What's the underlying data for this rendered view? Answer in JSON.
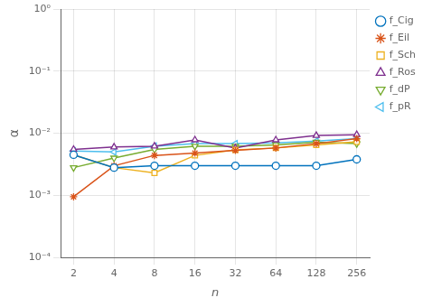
{
  "chart_data": {
    "type": "line",
    "x": [
      2,
      4,
      8,
      16,
      32,
      64,
      128,
      256
    ],
    "series": [
      {
        "name": "f_Cig",
        "color": "#0072BD",
        "marker": "circle",
        "values": [
          0.0045,
          0.0028,
          0.003,
          0.003,
          0.003,
          0.003,
          0.003,
          0.0038
        ]
      },
      {
        "name": "f_Eil",
        "color": "#D95319",
        "marker": "star",
        "values": [
          0.00095,
          0.003,
          0.0044,
          0.0048,
          0.0053,
          0.0058,
          0.0068,
          0.0082
        ]
      },
      {
        "name": "f_Sch",
        "color": "#EDB120",
        "marker": "square",
        "values": [
          0.0045,
          0.0028,
          0.0023,
          0.0044,
          0.0054,
          0.0058,
          0.0065,
          0.0073
        ]
      },
      {
        "name": "f_Ros",
        "color": "#7E2F8E",
        "marker": "triangle-up",
        "values": [
          0.0055,
          0.006,
          0.0062,
          0.0078,
          0.0058,
          0.0078,
          0.0092,
          0.0095
        ]
      },
      {
        "name": "f_dP",
        "color": "#77AC30",
        "marker": "triangle-down",
        "values": [
          0.0028,
          0.004,
          0.0055,
          0.0062,
          0.0062,
          0.0065,
          0.0072,
          0.0068
        ]
      },
      {
        "name": "f_pR",
        "color": "#4DBEEE",
        "marker": "triangle-left",
        "values": [
          0.0052,
          0.005,
          0.0062,
          0.0068,
          0.0068,
          0.007,
          0.0075,
          0.0082
        ]
      }
    ],
    "xlabel": "n",
    "ylabel": "α",
    "xlim": [
      1.6,
      320
    ],
    "xticks": [
      2,
      4,
      8,
      16,
      32,
      64,
      128,
      256
    ],
    "ylim": [
      0.0001,
      1
    ],
    "yticks": [
      {
        "value": 0.0001,
        "label": "10⁻⁴"
      },
      {
        "value": 0.001,
        "label": "10⁻³"
      },
      {
        "value": 0.01,
        "label": "10⁻²"
      },
      {
        "value": 0.1,
        "label": "10⁻¹"
      },
      {
        "value": 1,
        "label": "10⁰"
      }
    ],
    "log": true,
    "grid": true,
    "legend": "right"
  }
}
